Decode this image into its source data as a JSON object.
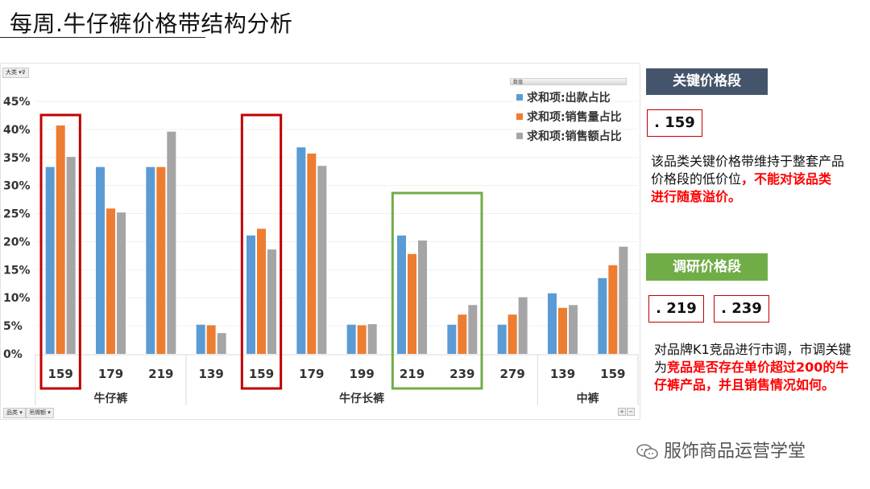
{
  "page": {
    "title": "每周.牛仔裤价格带结构分析",
    "watermark": "服饰商品运营学堂"
  },
  "filters": {
    "top": "大类",
    "bottom_1": "品类",
    "bottom_2": "吊牌额"
  },
  "colors": {
    "blue": "#5b9bd5",
    "orange": "#ed7d31",
    "gray": "#a5a5a5",
    "red_box": "#c00000",
    "green_box": "#70ad47",
    "key_head_bg": "#44546a",
    "research_head_bg": "#70ad47"
  },
  "chart_data": {
    "type": "bar",
    "legend_title": "数值",
    "legend_placement": "top-right",
    "ylim": [
      0,
      45
    ],
    "yticks": [
      "0%",
      "5%",
      "10%",
      "15%",
      "20%",
      "25%",
      "30%",
      "35%",
      "40%",
      "45%"
    ],
    "grid": true,
    "categories": [
      "159",
      "179",
      "219",
      "139",
      "159",
      "179",
      "199",
      "219",
      "239",
      "279",
      "139",
      "159"
    ],
    "groups": [
      {
        "name": "牛仔裤",
        "count": 3
      },
      {
        "name": "牛仔长裤",
        "count": 7
      },
      {
        "name": "中裤",
        "count": 2
      }
    ],
    "series": [
      {
        "name": "求和项:出款占比",
        "color": "#5b9bd5",
        "values": [
          33.3,
          33.3,
          33.3,
          5.2,
          21.1,
          36.8,
          5.2,
          21.1,
          5.2,
          5.2,
          10.8,
          13.5
        ]
      },
      {
        "name": "求和项:销售量占比",
        "color": "#ed7d31",
        "values": [
          40.7,
          25.9,
          33.3,
          5.1,
          22.3,
          35.7,
          5.1,
          17.8,
          7.0,
          7.0,
          8.2,
          15.8
        ]
      },
      {
        "name": "求和项:销售额占比",
        "color": "#a5a5a5",
        "values": [
          35.1,
          25.2,
          39.6,
          3.7,
          18.6,
          33.5,
          5.3,
          20.2,
          8.7,
          10.1,
          8.7,
          19.1
        ]
      }
    ],
    "highlight_boxes": [
      {
        "style": "red",
        "from": 0,
        "to": 0
      },
      {
        "style": "red",
        "from": 4,
        "to": 4
      },
      {
        "style": "green",
        "from": 7,
        "to": 8
      }
    ]
  },
  "panel": {
    "key_head": "关键价格段",
    "key_price": ". 159",
    "key_desc_plain": "该品类关键价格带维持于整套产品价格段的低价位",
    "key_desc_red": "，不能对该品类进行随意溢价。",
    "research_head": "调研价格段",
    "research_prices": [
      ". 219",
      ". 239"
    ],
    "research_desc_plain": "对品牌K1竞品进行市调，市调关键为",
    "research_desc_red": "竞品是否存在单价超过200的牛仔裤产品，并且销售情况如何。"
  }
}
